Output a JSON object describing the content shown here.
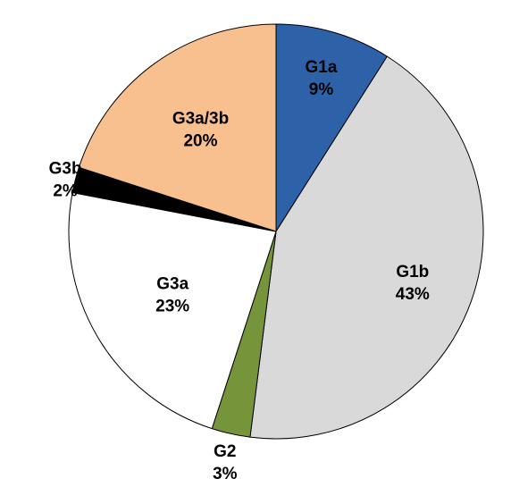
{
  "chart_data": {
    "type": "pie",
    "title": "",
    "legend": "none",
    "slices": [
      {
        "category": "G1a",
        "value": 9,
        "label": "9%",
        "color": "#2e62a8"
      },
      {
        "category": "G1b",
        "value": 43,
        "label": "43%",
        "color": "#d9d9d9"
      },
      {
        "category": "G2",
        "value": 3,
        "label": "3%",
        "color": "#76953a"
      },
      {
        "category": "G3a",
        "value": 23,
        "label": "23%",
        "color": "#ffffff"
      },
      {
        "category": "G3b",
        "value": 2,
        "label": "2%",
        "color": "#000000"
      },
      {
        "category": "G3a/3b",
        "value": 20,
        "label": "20%",
        "color": "#f9c08f"
      }
    ]
  }
}
